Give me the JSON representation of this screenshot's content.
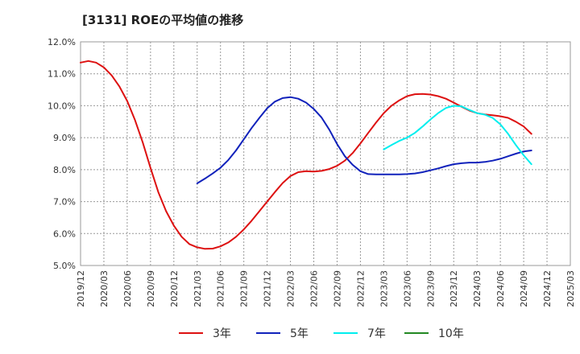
{
  "chart_data": {
    "type": "line",
    "title": "[3131]  ROEの平均値の推移",
    "xlabel": "",
    "ylabel": "",
    "ylim": [
      5.0,
      12.0
    ],
    "y_ticks": [
      "5.0%",
      "6.0%",
      "7.0%",
      "8.0%",
      "9.0%",
      "10.0%",
      "11.0%",
      "12.0%"
    ],
    "y_tick_values": [
      5,
      6,
      7,
      8,
      9,
      10,
      11,
      12
    ],
    "x_ticks": [
      "2019/12",
      "2020/03",
      "2020/06",
      "2020/09",
      "2020/12",
      "2021/03",
      "2021/06",
      "2021/09",
      "2021/12",
      "2022/03",
      "2022/06",
      "2022/09",
      "2022/12",
      "2023/03",
      "2023/06",
      "2023/09",
      "2023/12",
      "2024/03",
      "2024/06",
      "2024/09",
      "2024/12",
      "2025/03"
    ],
    "grid": true,
    "legend_position": "bottom",
    "series": [
      {
        "name": "3年",
        "color": "#dd1111",
        "points": [
          [
            0,
            11.35
          ],
          [
            1,
            11.4
          ],
          [
            2,
            11.35
          ],
          [
            3,
            11.2
          ],
          [
            4,
            10.95
          ],
          [
            5,
            10.6
          ],
          [
            6,
            10.15
          ],
          [
            7,
            9.55
          ],
          [
            8,
            8.85
          ],
          [
            9,
            8.05
          ],
          [
            10,
            7.3
          ],
          [
            11,
            6.7
          ],
          [
            12,
            6.25
          ],
          [
            13,
            5.9
          ],
          [
            14,
            5.67
          ],
          [
            15,
            5.57
          ],
          [
            16,
            5.52
          ],
          [
            17,
            5.53
          ],
          [
            18,
            5.6
          ],
          [
            19,
            5.72
          ],
          [
            20,
            5.9
          ],
          [
            21,
            6.13
          ],
          [
            22,
            6.4
          ],
          [
            23,
            6.7
          ],
          [
            24,
            7.0
          ],
          [
            25,
            7.3
          ],
          [
            26,
            7.58
          ],
          [
            27,
            7.8
          ],
          [
            28,
            7.92
          ],
          [
            29,
            7.95
          ],
          [
            30,
            7.94
          ],
          [
            31,
            7.96
          ],
          [
            32,
            8.02
          ],
          [
            33,
            8.12
          ],
          [
            34,
            8.28
          ],
          [
            35,
            8.52
          ],
          [
            36,
            8.82
          ],
          [
            37,
            9.15
          ],
          [
            38,
            9.47
          ],
          [
            39,
            9.77
          ],
          [
            40,
            10.0
          ],
          [
            41,
            10.17
          ],
          [
            42,
            10.3
          ],
          [
            43,
            10.36
          ],
          [
            44,
            10.37
          ],
          [
            45,
            10.35
          ],
          [
            46,
            10.3
          ],
          [
            47,
            10.22
          ],
          [
            48,
            10.1
          ],
          [
            49,
            9.97
          ],
          [
            50,
            9.85
          ],
          [
            51,
            9.77
          ],
          [
            52,
            9.73
          ],
          [
            53,
            9.7
          ],
          [
            54,
            9.67
          ],
          [
            55,
            9.62
          ],
          [
            56,
            9.5
          ],
          [
            57,
            9.35
          ],
          [
            58,
            9.12
          ]
        ]
      },
      {
        "name": "5年",
        "color": "#1122bb",
        "points": [
          [
            15,
            7.57
          ],
          [
            16,
            7.72
          ],
          [
            17,
            7.88
          ],
          [
            18,
            8.06
          ],
          [
            19,
            8.3
          ],
          [
            20,
            8.6
          ],
          [
            21,
            8.95
          ],
          [
            22,
            9.3
          ],
          [
            23,
            9.62
          ],
          [
            24,
            9.92
          ],
          [
            25,
            10.13
          ],
          [
            26,
            10.24
          ],
          [
            27,
            10.27
          ],
          [
            28,
            10.22
          ],
          [
            29,
            10.1
          ],
          [
            30,
            9.9
          ],
          [
            31,
            9.63
          ],
          [
            32,
            9.25
          ],
          [
            33,
            8.8
          ],
          [
            34,
            8.42
          ],
          [
            35,
            8.15
          ],
          [
            36,
            7.95
          ],
          [
            37,
            7.86
          ],
          [
            38,
            7.85
          ],
          [
            39,
            7.85
          ],
          [
            40,
            7.85
          ],
          [
            41,
            7.85
          ],
          [
            42,
            7.86
          ],
          [
            43,
            7.88
          ],
          [
            44,
            7.92
          ],
          [
            45,
            7.98
          ],
          [
            46,
            8.04
          ],
          [
            47,
            8.11
          ],
          [
            48,
            8.17
          ],
          [
            49,
            8.2
          ],
          [
            50,
            8.22
          ],
          [
            51,
            8.22
          ],
          [
            52,
            8.24
          ],
          [
            53,
            8.28
          ],
          [
            54,
            8.34
          ],
          [
            55,
            8.42
          ],
          [
            56,
            8.5
          ],
          [
            57,
            8.57
          ],
          [
            58,
            8.6
          ]
        ]
      },
      {
        "name": "7年",
        "color": "#00eeee",
        "points": [
          [
            39,
            8.63
          ],
          [
            40,
            8.77
          ],
          [
            41,
            8.9
          ],
          [
            42,
            9.0
          ],
          [
            43,
            9.15
          ],
          [
            44,
            9.35
          ],
          [
            45,
            9.57
          ],
          [
            46,
            9.77
          ],
          [
            47,
            9.93
          ],
          [
            48,
            10.0
          ],
          [
            49,
            9.98
          ],
          [
            50,
            9.87
          ],
          [
            51,
            9.77
          ],
          [
            52,
            9.72
          ],
          [
            53,
            9.62
          ],
          [
            54,
            9.42
          ],
          [
            55,
            9.12
          ],
          [
            56,
            8.77
          ],
          [
            57,
            8.45
          ],
          [
            58,
            8.17
          ]
        ]
      },
      {
        "name": "10年",
        "color": "#228822",
        "points": []
      }
    ]
  }
}
